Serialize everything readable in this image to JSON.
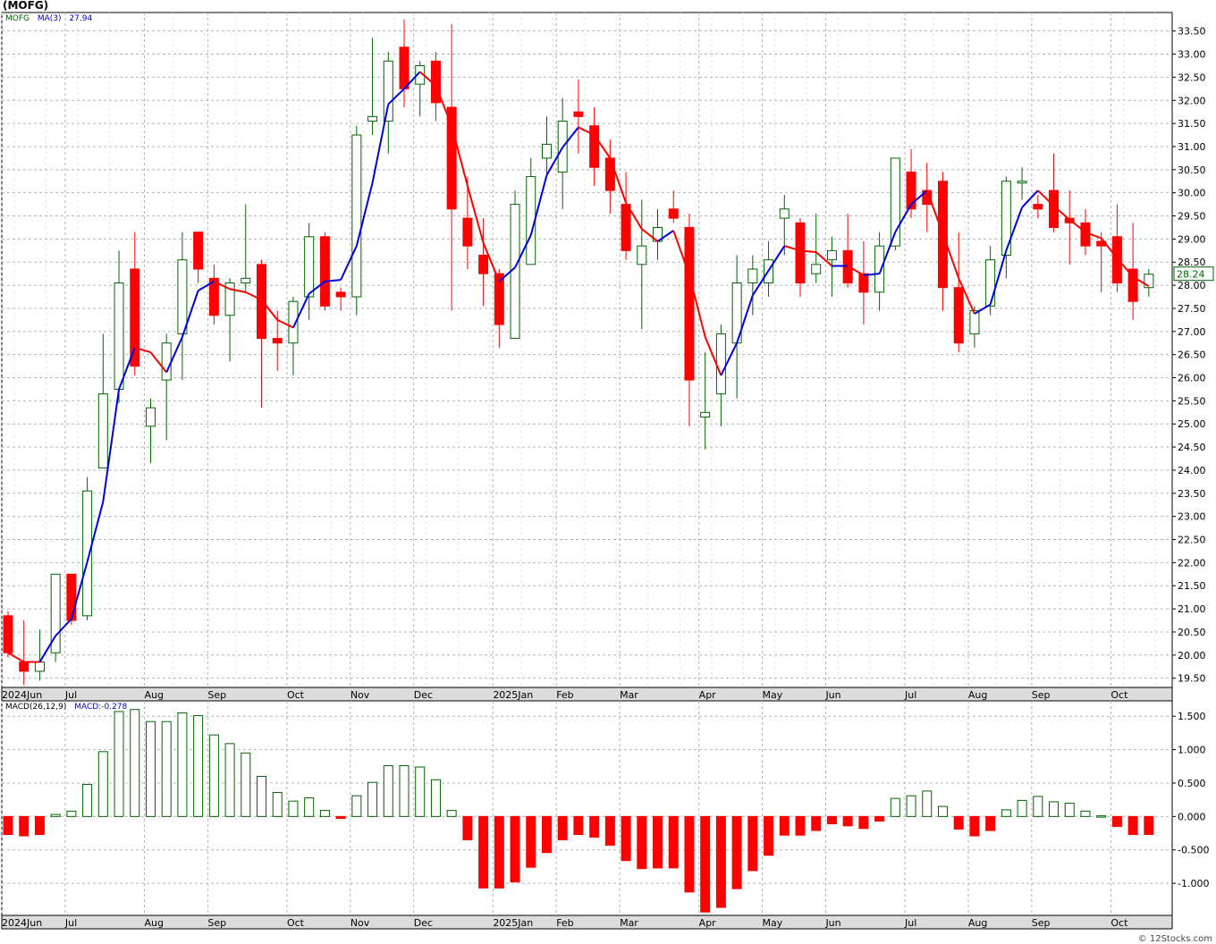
{
  "title": "(MOFG)",
  "watermark": "© 12Stocks.com",
  "price_panel": {
    "legend_symbol": "MOFG",
    "legend_ma": "MA(3)",
    "legend_ma_value": "27.94",
    "last_price_label": "28.24"
  },
  "macd_panel": {
    "legend_name": "MACD(26,12,9)",
    "legend_value": "MACD:-0.278"
  },
  "colors": {
    "up": "#006400",
    "down": "#ff0000",
    "ma_up": "#0000dd",
    "ma_down": "#ff0000",
    "grid": "#b4b4b4",
    "axis_band": "#dcdcdc"
  },
  "chart_data": [
    {
      "type": "candlestick",
      "timeframe": "weekly",
      "ylim": [
        19.3,
        33.9
      ],
      "y_ticks": [
        "19.50",
        "20.00",
        "20.50",
        "21.00",
        "21.50",
        "22.00",
        "22.50",
        "23.00",
        "23.50",
        "24.00",
        "24.50",
        "25.00",
        "25.50",
        "26.00",
        "26.50",
        "27.00",
        "27.50",
        "28.00",
        "28.50",
        "29.00",
        "29.50",
        "30.00",
        "30.50",
        "31.00",
        "31.50",
        "32.00",
        "32.50",
        "33.00",
        "33.50"
      ],
      "x_labels": [
        {
          "label": "2024Jun",
          "index": 0
        },
        {
          "label": "Jul",
          "index": 4
        },
        {
          "label": "Aug",
          "index": 9
        },
        {
          "label": "Sep",
          "index": 13
        },
        {
          "label": "Oct",
          "index": 18
        },
        {
          "label": "Nov",
          "index": 22
        },
        {
          "label": "Dec",
          "index": 26
        },
        {
          "label": "2025Jan",
          "index": 31
        },
        {
          "label": "Feb",
          "index": 35
        },
        {
          "label": "Mar",
          "index": 39
        },
        {
          "label": "Apr",
          "index": 44
        },
        {
          "label": "May",
          "index": 48
        },
        {
          "label": "Jun",
          "index": 52
        },
        {
          "label": "Jul",
          "index": 57
        },
        {
          "label": "Aug",
          "index": 61
        },
        {
          "label": "Sep",
          "index": 65
        },
        {
          "label": "Oct",
          "index": 70
        }
      ],
      "ohlc": [
        [
          20.85,
          20.95,
          19.95,
          20.05
        ],
        [
          19.85,
          20.75,
          19.35,
          19.65
        ],
        [
          19.65,
          20.55,
          19.45,
          19.85
        ],
        [
          20.05,
          21.75,
          19.85,
          21.75
        ],
        [
          21.75,
          21.75,
          20.65,
          20.75
        ],
        [
          20.85,
          23.85,
          20.75,
          23.55
        ],
        [
          24.05,
          26.95,
          24.05,
          25.65
        ],
        [
          25.75,
          28.75,
          25.45,
          28.05
        ],
        [
          28.35,
          29.15,
          26.05,
          26.25
        ],
        [
          24.95,
          25.55,
          24.15,
          25.35
        ],
        [
          25.95,
          26.95,
          24.65,
          26.75
        ],
        [
          26.95,
          29.15,
          25.95,
          28.55
        ],
        [
          29.15,
          29.15,
          28.05,
          28.35
        ],
        [
          28.15,
          28.45,
          27.15,
          27.35
        ],
        [
          27.35,
          28.15,
          26.35,
          28.05
        ],
        [
          28.05,
          29.75,
          27.85,
          28.15
        ],
        [
          28.45,
          28.55,
          25.35,
          26.85
        ],
        [
          26.85,
          27.45,
          26.15,
          26.75
        ],
        [
          26.75,
          27.75,
          26.05,
          27.65
        ],
        [
          27.75,
          29.35,
          27.25,
          29.05
        ],
        [
          29.05,
          29.15,
          27.45,
          27.55
        ],
        [
          27.85,
          27.95,
          27.45,
          27.75
        ],
        [
          27.75,
          31.45,
          27.35,
          31.25
        ],
        [
          31.55,
          33.35,
          31.25,
          31.65
        ],
        [
          31.55,
          33.05,
          30.85,
          32.85
        ],
        [
          33.15,
          33.75,
          31.85,
          32.25
        ],
        [
          32.35,
          32.85,
          31.65,
          32.75
        ],
        [
          32.85,
          33.05,
          31.55,
          31.95
        ],
        [
          31.85,
          33.65,
          27.45,
          29.65
        ],
        [
          29.45,
          30.35,
          28.35,
          28.85
        ],
        [
          28.65,
          29.45,
          27.55,
          28.25
        ],
        [
          28.25,
          28.35,
          26.65,
          27.15
        ],
        [
          26.85,
          30.05,
          26.85,
          29.75
        ],
        [
          28.45,
          30.75,
          28.45,
          30.35
        ],
        [
          30.75,
          31.65,
          30.35,
          31.05
        ],
        [
          30.45,
          32.05,
          29.65,
          31.55
        ],
        [
          31.75,
          32.45,
          30.85,
          31.65
        ],
        [
          31.45,
          31.85,
          30.15,
          30.55
        ],
        [
          30.75,
          31.15,
          29.55,
          30.05
        ],
        [
          29.75,
          30.45,
          28.55,
          28.75
        ],
        [
          28.45,
          29.85,
          27.05,
          28.85
        ],
        [
          28.95,
          29.65,
          28.55,
          29.25
        ],
        [
          29.65,
          30.05,
          29.35,
          29.45
        ],
        [
          29.25,
          29.55,
          24.95,
          25.95
        ],
        [
          25.15,
          26.55,
          24.45,
          25.25
        ],
        [
          25.65,
          27.15,
          24.95,
          26.95
        ],
        [
          26.75,
          28.65,
          25.55,
          28.05
        ],
        [
          28.05,
          28.65,
          27.35,
          28.35
        ],
        [
          28.05,
          28.95,
          27.75,
          28.55
        ],
        [
          29.45,
          29.95,
          28.65,
          29.65
        ],
        [
          29.35,
          29.45,
          27.75,
          28.05
        ],
        [
          28.25,
          29.55,
          28.05,
          28.45
        ],
        [
          28.55,
          29.05,
          27.75,
          28.75
        ],
        [
          28.75,
          29.55,
          27.95,
          28.05
        ],
        [
          28.25,
          28.95,
          27.15,
          27.85
        ],
        [
          27.85,
          29.15,
          27.45,
          28.85
        ],
        [
          28.85,
          30.75,
          28.75,
          30.75
        ],
        [
          30.45,
          30.95,
          29.45,
          29.65
        ],
        [
          30.05,
          30.65,
          29.15,
          29.75
        ],
        [
          30.25,
          30.45,
          27.45,
          27.95
        ],
        [
          27.95,
          29.15,
          26.55,
          26.75
        ],
        [
          26.95,
          27.55,
          26.65,
          27.45
        ],
        [
          27.55,
          28.85,
          27.35,
          28.55
        ],
        [
          28.65,
          30.35,
          28.15,
          30.25
        ],
        [
          30.25,
          30.55,
          29.85,
          30.25
        ],
        [
          29.75,
          29.95,
          29.45,
          29.65
        ],
        [
          30.05,
          30.85,
          29.15,
          29.25
        ],
        [
          29.45,
          30.05,
          28.45,
          29.35
        ],
        [
          29.35,
          29.65,
          28.65,
          28.85
        ],
        [
          28.95,
          29.15,
          27.85,
          28.85
        ],
        [
          29.05,
          29.75,
          27.85,
          28.05
        ],
        [
          28.35,
          29.35,
          27.25,
          27.65
        ],
        [
          27.95,
          28.35,
          27.75,
          28.24
        ]
      ]
    },
    {
      "type": "bar",
      "name": "MACD histogram",
      "ylim": [
        -1.48,
        1.73
      ],
      "y_ticks": [
        "-1.000",
        "-0.500",
        "0.000",
        "0.500",
        "1.000",
        "1.500"
      ],
      "values": [
        -0.27,
        -0.29,
        -0.27,
        0.03,
        0.08,
        0.48,
        0.97,
        1.57,
        1.6,
        1.42,
        1.42,
        1.55,
        1.51,
        1.22,
        1.09,
        0.95,
        0.6,
        0.36,
        0.23,
        0.28,
        0.09,
        -0.03,
        0.31,
        0.51,
        0.76,
        0.76,
        0.74,
        0.55,
        0.09,
        -0.35,
        -1.07,
        -1.07,
        -0.98,
        -0.76,
        -0.54,
        -0.35,
        -0.27,
        -0.31,
        -0.43,
        -0.66,
        -0.78,
        -0.77,
        -0.77,
        -1.13,
        -1.43,
        -1.36,
        -1.08,
        -0.81,
        -0.58,
        -0.28,
        -0.28,
        -0.21,
        -0.11,
        -0.14,
        -0.18,
        -0.07,
        0.27,
        0.31,
        0.38,
        0.15,
        -0.19,
        -0.29,
        -0.21,
        0.1,
        0.24,
        0.3,
        0.22,
        0.2,
        0.08,
        0.01,
        -0.15,
        -0.27,
        -0.27
      ]
    }
  ]
}
